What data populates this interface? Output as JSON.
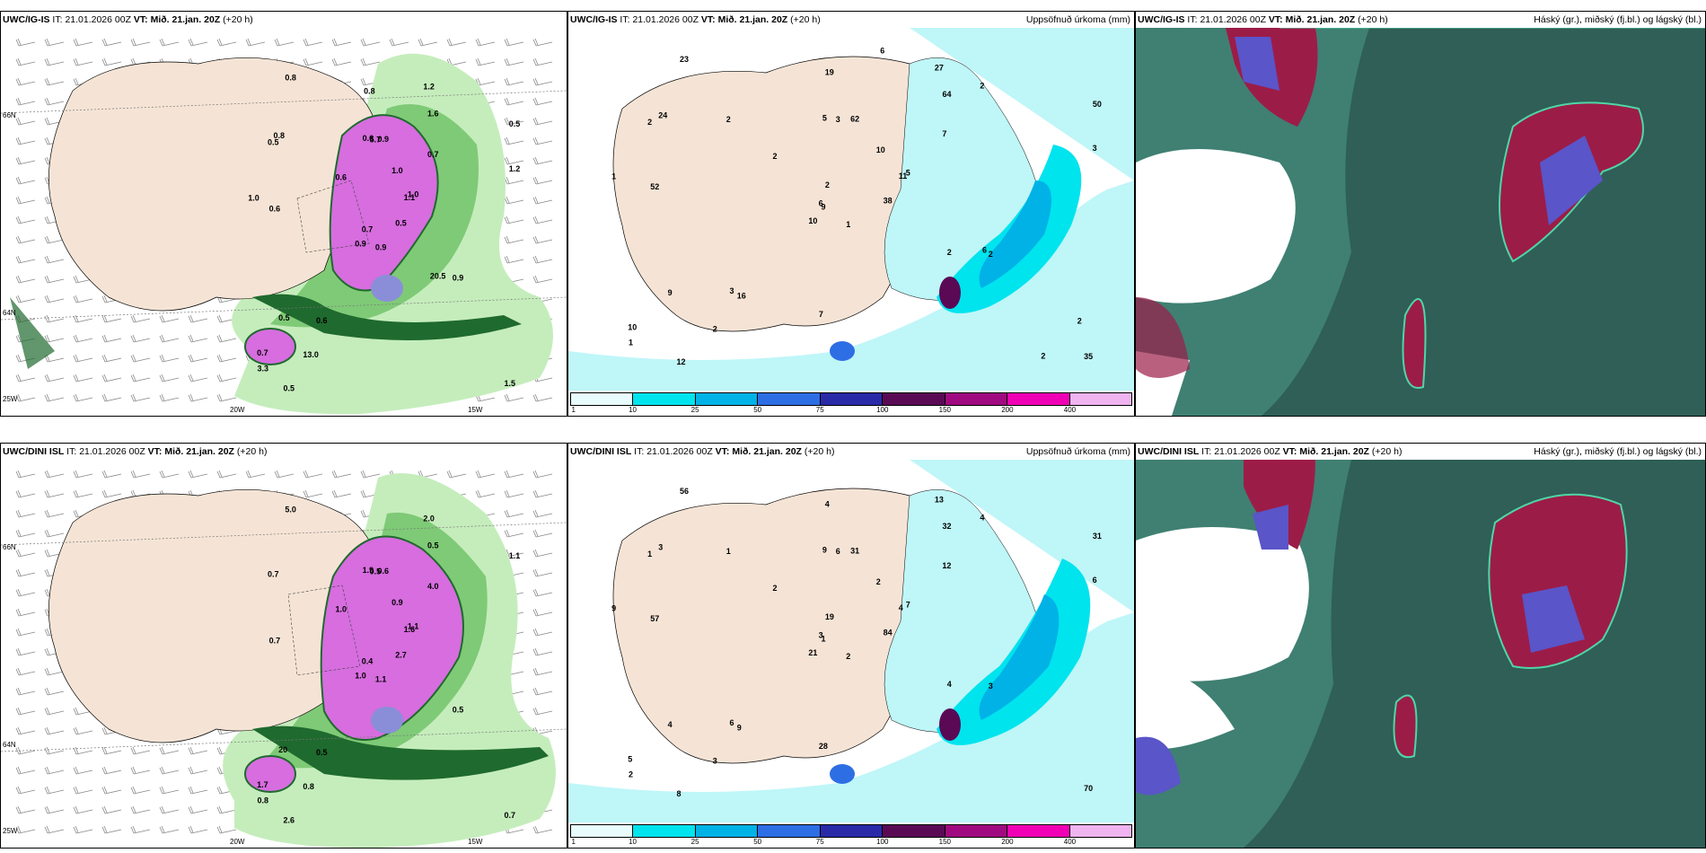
{
  "rows": [
    {
      "model": "UWC/IG-IS",
      "panels": [
        {
          "it_label": "IT:",
          "it_value": "21.01.2026 00Z",
          "vt_label": "VT:",
          "vt_value": "Mið. 21.jan. 20Z",
          "lead": "(+20 h)",
          "right": ""
        },
        {
          "it_label": "IT:",
          "it_value": "21.01.2026 00Z",
          "vt_label": "VT:",
          "vt_value": "Mið. 21.jan. 20Z",
          "lead": "(+20 h)",
          "right": "Uppsöfnuð úrkoma (mm)"
        },
        {
          "it_label": "IT:",
          "it_value": "21.01.2026 00Z",
          "vt_label": "VT:",
          "vt_value": "Mið. 21.jan. 20Z",
          "lead": "(+20 h)",
          "right": "Háský (gr.), miðský (fj.bl.) og lágský (bl.)"
        }
      ],
      "axis_labels": {
        "lat1": "66N",
        "lat2": "64N",
        "lat3": "25W",
        "lon1": "20W",
        "lon2": "15W"
      },
      "p1_values": [
        "0.9",
        "0.5",
        "0.7",
        "0.7",
        "1.1",
        "0.6",
        "1.2",
        "0.9",
        "1.6",
        "0.5",
        "0.8",
        "1.5",
        "0.6",
        "0.5",
        "0.9",
        "0.7",
        "0.5",
        "0.6",
        "1.0",
        "0.5",
        "0.6",
        "3.3",
        "13.0",
        "5.7",
        "1.0",
        "0.9",
        "0.8",
        "0.8",
        "1.0",
        "20.5",
        "1.2"
      ],
      "p2_values": [
        "1",
        "2",
        "9",
        "10",
        "11",
        "16",
        "27",
        "62",
        "64",
        "38",
        "23",
        "35",
        "52",
        "50",
        "10",
        "7",
        "12",
        "5",
        "10",
        "9",
        "2",
        "1",
        "2",
        "3",
        "5",
        "2",
        "24",
        "19",
        "1",
        "2",
        "3",
        "6",
        "7",
        "2",
        "2",
        "2",
        "3",
        "2",
        "2",
        "6",
        "6"
      ]
    },
    {
      "model": "UWC/DINI ISL",
      "panels": [
        {
          "it_label": "IT:",
          "it_value": "21.01.2026 00Z",
          "vt_label": "VT:",
          "vt_value": "Mið. 21.jan. 20Z",
          "lead": "(+20 h)",
          "right": ""
        },
        {
          "it_label": "IT:",
          "it_value": "21.01.2026 00Z",
          "vt_label": "VT:",
          "vt_value": "Mið. 21.jan. 20Z",
          "lead": "(+20 h)",
          "right": "Uppsöfnuð úrkoma (mm)"
        },
        {
          "it_label": "IT:",
          "it_value": "21.01.2026 00Z",
          "vt_label": "VT:",
          "vt_value": "Mið. 21.jan. 20Z",
          "lead": "(+20 h)",
          "right": "Háský (gr.), miðský (fj.bl.) og lágský (bl.)"
        }
      ],
      "axis_labels": {
        "lat1": "66N",
        "lat2": "64N",
        "lat3": "25W",
        "lon1": "20W",
        "lon2": "15W"
      },
      "p1_values": [
        "1.1",
        "0.7",
        "0.4",
        "1.7",
        "1.6",
        "0.5",
        "2.0",
        "0.6",
        "0.5",
        "2.7",
        "5.0",
        "0.7",
        "0.7",
        "1.1",
        "1.0",
        "4.0",
        "2.6",
        "1.9",
        "0.9",
        "20",
        "1.0",
        "0.8",
        "0.8",
        "0.5",
        "1.1",
        "0.5"
      ],
      "p2_values": [
        "2",
        "1",
        "1",
        "5",
        "4",
        "9",
        "13",
        "31",
        "32",
        "84",
        "56",
        "70",
        "57",
        "31",
        "21",
        "12",
        "8",
        "9",
        "2",
        "4",
        "2",
        "2",
        "3",
        "6",
        "7",
        "3",
        "3",
        "4",
        "9",
        "4",
        "6",
        "3",
        "28",
        "19",
        "1",
        "4",
        "6"
      ]
    }
  ],
  "legend": {
    "ticks": [
      "1",
      "10",
      "25",
      "50",
      "75",
      "100",
      "150",
      "200",
      "400"
    ],
    "colors": [
      "#e8fbfd",
      "#00e4ee",
      "#00b2e6",
      "#2e6ee4",
      "#2a2aa8",
      "#5a0a55",
      "#a00a80",
      "#f000b4",
      "#f0b4f0"
    ]
  },
  "colors": {
    "land": "#f5e4d6",
    "sea_cyan": "#bff6f8",
    "green_light": "#c5edbc",
    "green_mid": "#7fca76",
    "green_dark": "#1f6a2e",
    "magenta": "#d76ddf",
    "cloud_teal": "#3f8072",
    "cloud_dark": "#2f5f57",
    "cloud_red": "#9c1c48",
    "cloud_blue": "#5a55c8"
  }
}
